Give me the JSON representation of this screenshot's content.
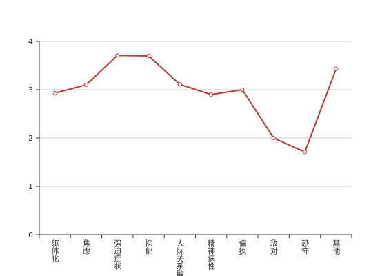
{
  "chart_data": {
    "type": "line",
    "categories": [
      "躯体化",
      "焦虑",
      "强迫症状",
      "抑郁",
      "人际关系敏感",
      "精神病性",
      "偏执",
      "敌对",
      "恐怖",
      "其他"
    ],
    "values": [
      2.93,
      3.1,
      3.71,
      3.7,
      3.11,
      2.9,
      3.0,
      2.0,
      1.71,
      3.43
    ],
    "color": "#c23531",
    "ylim": [
      0,
      4
    ],
    "yticks": [
      0,
      1,
      2,
      3,
      4
    ],
    "grid": true
  }
}
